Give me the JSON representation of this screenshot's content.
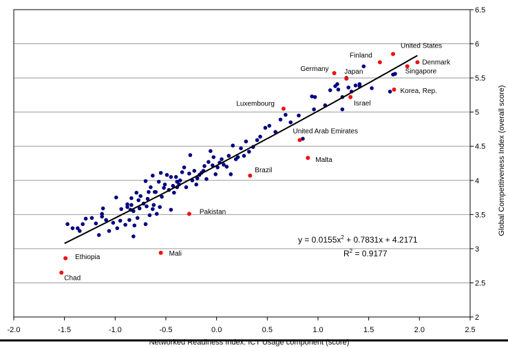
{
  "chart_data": {
    "type": "scatter",
    "xlabel": "Networked Readiness Index: ICT Usage component (score)",
    "ylabel": "Global Competitiveness Index (overall score)",
    "xlim": [
      -2.0,
      2.5
    ],
    "ylim": [
      2,
      6.5
    ],
    "x_ticks": [
      "-2.0",
      "-1.5",
      "-1.0",
      "-0.5",
      "0.0",
      "0.5",
      "1.0",
      "1.5",
      "2.0",
      "2.5"
    ],
    "y_ticks": [
      "2",
      "2.5",
      "3",
      "3.5",
      "4",
      "4.5",
      "5",
      "5.5",
      "6",
      "6.5"
    ],
    "grid": "horizontal",
    "y_axis_side": "right",
    "colors": {
      "points": "#000080",
      "highlight": "#ee1111",
      "trend": "#000000"
    },
    "trendline": {
      "type": "polynomial",
      "coefficients": [
        0.0155,
        0.7831,
        4.2171
      ],
      "x_range": [
        -1.5,
        1.98
      ],
      "equation_base": "y = 0.0155x",
      "equation_exp": "2",
      "equation_tail": " + 0.7831x + 4.2171",
      "r2_base": "R",
      "r2_exp": "2",
      "r2_tail": " = 0.9177"
    },
    "labeled_points": [
      {
        "name": "United States",
        "x": 1.74,
        "y": 5.85
      },
      {
        "name": "Finland",
        "x": 1.61,
        "y": 5.73
      },
      {
        "name": "Denmark",
        "x": 1.98,
        "y": 5.73
      },
      {
        "name": "Germany",
        "x": 1.16,
        "y": 5.57
      },
      {
        "name": "Japan",
        "x": 1.28,
        "y": 5.49
      },
      {
        "name": "Singapore",
        "x": 1.88,
        "y": 5.67
      },
      {
        "name": "Korea, Rep.",
        "x": 1.75,
        "y": 5.33
      },
      {
        "name": "Israel",
        "x": 1.32,
        "y": 5.22
      },
      {
        "name": "Luxembourg",
        "x": 0.66,
        "y": 5.05
      },
      {
        "name": "United Arab Emirates",
        "x": 0.82,
        "y": 4.59
      },
      {
        "name": "Malta",
        "x": 0.9,
        "y": 4.33
      },
      {
        "name": "Brazil",
        "x": 0.33,
        "y": 4.07
      },
      {
        "name": "Pakistan",
        "x": -0.27,
        "y": 3.51
      },
      {
        "name": "Mali",
        "x": -0.55,
        "y": 2.94
      },
      {
        "name": "Ethiopia",
        "x": -1.49,
        "y": 2.86
      },
      {
        "name": "Chad",
        "x": -1.53,
        "y": 2.65
      }
    ],
    "points": [
      [
        -1.47,
        3.36
      ],
      [
        -1.42,
        3.3
      ],
      [
        -1.37,
        3.3
      ],
      [
        -1.35,
        3.26
      ],
      [
        -1.32,
        3.36
      ],
      [
        -1.29,
        3.44
      ],
      [
        -1.23,
        3.45
      ],
      [
        -1.19,
        3.37
      ],
      [
        -1.16,
        3.2
      ],
      [
        -1.13,
        3.47
      ],
      [
        -1.13,
        3.51
      ],
      [
        -1.12,
        3.59
      ],
      [
        -1.09,
        3.42
      ],
      [
        -1.06,
        3.26
      ],
      [
        -1.02,
        3.38
      ],
      [
        -0.99,
        3.75
      ],
      [
        -0.98,
        3.3
      ],
      [
        -0.95,
        3.41
      ],
      [
        -0.94,
        3.58
      ],
      [
        -0.9,
        3.35
      ],
      [
        -0.88,
        3.61
      ],
      [
        -0.86,
        3.42
      ],
      [
        -0.85,
        3.57
      ],
      [
        -0.84,
        3.64
      ],
      [
        -0.82,
        3.55
      ],
      [
        -0.82,
        3.18
      ],
      [
        -0.81,
        3.34
      ],
      [
        -0.79,
        3.82
      ],
      [
        -0.78,
        3.45
      ],
      [
        -0.77,
        3.71
      ],
      [
        -0.76,
        3.59
      ],
      [
        -0.75,
        3.77
      ],
      [
        -0.72,
        3.66
      ],
      [
        -0.7,
        3.99
      ],
      [
        -0.7,
        3.36
      ],
      [
        -0.69,
        3.62
      ],
      [
        -0.68,
        3.73
      ],
      [
        -0.67,
        3.83
      ],
      [
        -0.66,
        3.49
      ],
      [
        -0.65,
        3.9
      ],
      [
        -0.63,
        4.07
      ],
      [
        -0.63,
        3.58
      ],
      [
        -0.62,
        3.64
      ],
      [
        -0.6,
        3.83
      ],
      [
        -0.59,
        3.51
      ],
      [
        -0.57,
        3.98
      ],
      [
        -0.55,
        4.11
      ],
      [
        -0.54,
        3.76
      ],
      [
        -0.52,
        3.89
      ],
      [
        -0.51,
        3.94
      ],
      [
        -0.49,
        4.08
      ],
      [
        -0.47,
        3.86
      ],
      [
        -0.45,
        4.05
      ],
      [
        -0.43,
        3.92
      ],
      [
        -0.42,
        3.82
      ],
      [
        -0.4,
        4.05
      ],
      [
        -0.39,
        3.9
      ],
      [
        -0.37,
        3.94
      ],
      [
        -0.36,
        4.0
      ],
      [
        -0.34,
        4.12
      ],
      [
        -0.32,
        4.19
      ],
      [
        -0.3,
        3.9
      ],
      [
        -0.27,
        4.1
      ],
      [
        -0.26,
        4.37
      ],
      [
        -0.24,
        4.0
      ],
      [
        -0.22,
        4.14
      ],
      [
        -0.2,
        3.94
      ],
      [
        -0.19,
        4.03
      ],
      [
        -0.17,
        4.08
      ],
      [
        -0.15,
        4.11
      ],
      [
        -0.13,
        4.14
      ],
      [
        -0.12,
        4.21
      ],
      [
        -0.1,
        4.02
      ],
      [
        -0.08,
        4.27
      ],
      [
        -0.06,
        4.43
      ],
      [
        -0.04,
        4.22
      ],
      [
        -0.03,
        4.34
      ],
      [
        -0.01,
        4.09
      ],
      [
        0.01,
        4.19
      ],
      [
        0.03,
        4.26
      ],
      [
        0.05,
        4.31
      ],
      [
        0.07,
        4.23
      ],
      [
        0.1,
        4.2
      ],
      [
        0.12,
        4.36
      ],
      [
        0.14,
        4.09
      ],
      [
        0.16,
        4.51
      ],
      [
        0.19,
        4.31
      ],
      [
        0.21,
        4.34
      ],
      [
        0.24,
        4.47
      ],
      [
        0.27,
        4.36
      ],
      [
        0.29,
        4.57
      ],
      [
        0.32,
        4.42
      ],
      [
        0.36,
        4.49
      ],
      [
        0.4,
        4.59
      ],
      [
        0.43,
        4.64
      ],
      [
        0.48,
        4.77
      ],
      [
        0.52,
        4.8
      ],
      [
        0.58,
        4.71
      ],
      [
        0.63,
        4.89
      ],
      [
        0.68,
        4.96
      ],
      [
        0.73,
        4.85
      ],
      [
        0.81,
        4.95
      ],
      [
        0.85,
        4.61
      ],
      [
        0.94,
        5.23
      ],
      [
        0.97,
        5.22
      ],
      [
        1.07,
        5.1
      ],
      [
        1.12,
        5.32
      ],
      [
        1.17,
        5.38
      ],
      [
        1.2,
        5.33
      ],
      [
        1.24,
        5.22
      ],
      [
        1.28,
        5.5
      ],
      [
        1.3,
        5.36
      ],
      [
        1.33,
        5.3
      ],
      [
        1.37,
        5.39
      ],
      [
        1.41,
        5.41
      ],
      [
        1.45,
        5.67
      ],
      [
        1.53,
        5.35
      ],
      [
        1.71,
        5.3
      ],
      [
        1.74,
        5.55
      ],
      [
        1.76,
        5.56
      ],
      [
        1.24,
        5.04
      ],
      [
        0.96,
        5.04
      ],
      [
        1.19,
        5.41
      ],
      [
        1.41,
        5.38
      ],
      [
        -0.45,
        3.57
      ],
      [
        -0.39,
        3.98
      ],
      [
        -0.56,
        3.61
      ],
      [
        -0.61,
        3.83
      ],
      [
        -0.84,
        3.74
      ],
      [
        -0.88,
        3.65
      ]
    ]
  }
}
